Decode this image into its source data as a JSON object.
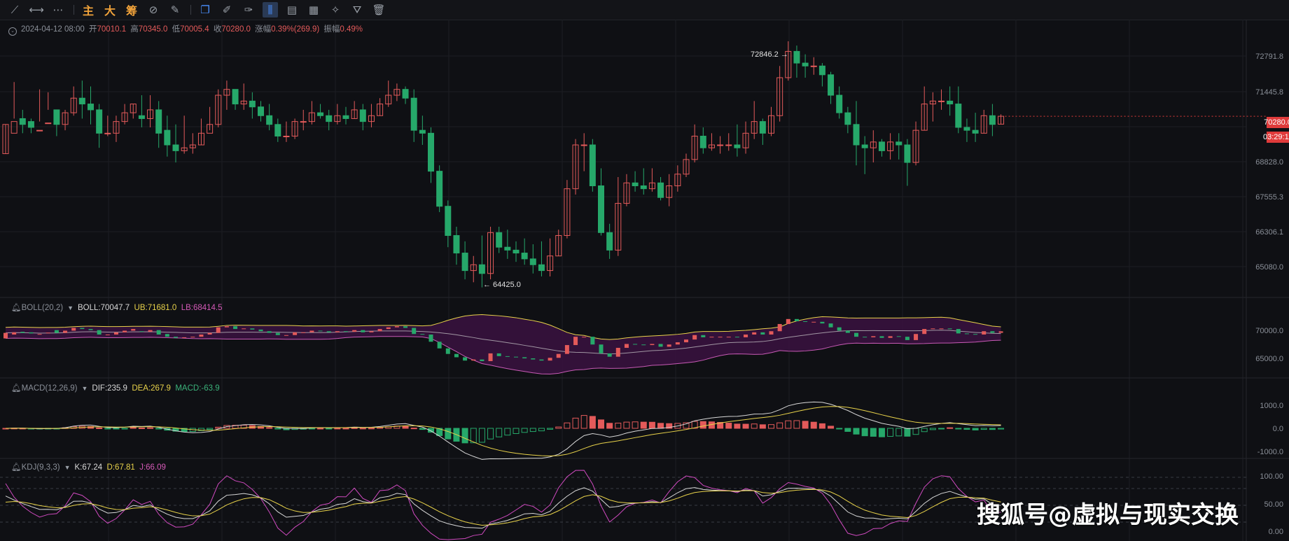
{
  "toolbar": {
    "items": [
      {
        "name": "trendline-tool-icon",
        "glyph": "⟋"
      },
      {
        "name": "horizontal-ray-tool-icon",
        "glyph": "⟷"
      },
      {
        "name": "more-tools-icon",
        "glyph": "⋯"
      }
    ],
    "chars": [
      "主",
      "大",
      "筹"
    ],
    "tools2": [
      {
        "name": "indicator-icon",
        "glyph": "⊘"
      },
      {
        "name": "draw-pen-icon",
        "glyph": "✎"
      }
    ],
    "tools3": [
      {
        "name": "copy-icon",
        "glyph": "❐"
      },
      {
        "name": "ruler-icon",
        "glyph": "✐"
      },
      {
        "name": "brush-icon",
        "glyph": "✑"
      },
      {
        "name": "candle-style-icon",
        "glyph": "⫼"
      },
      {
        "name": "clipboard-icon",
        "glyph": "▤"
      },
      {
        "name": "note-icon",
        "glyph": "▦"
      },
      {
        "name": "magic-icon",
        "glyph": "✧"
      },
      {
        "name": "filter-icon",
        "glyph": "⛛"
      },
      {
        "name": "trash-icon",
        "glyph": "🗑"
      }
    ]
  },
  "ohlc": {
    "date": "2024-04-12 08:00",
    "open_label": "开",
    "open": "70010.1",
    "high_label": "高",
    "high": "70345.0",
    "low_label": "低",
    "low": "70005.4",
    "close_label": "收",
    "close": "70280.0",
    "change_label": "涨幅",
    "change": "0.39%(269.9)",
    "amp_label": "振幅",
    "amp": "0.49%"
  },
  "boll": {
    "name": "BOLL(20,2)",
    "mid": "BOLL:70047.7",
    "ub": "UB:71681.0",
    "lb": "LB:68414.5"
  },
  "macd": {
    "name": "MACD(12,26,9)",
    "dif": "DIF:235.9",
    "dea": "DEA:267.9",
    "macd": "MACD:-63.9"
  },
  "kdj": {
    "name": "KDJ(9,3,3)",
    "k": "K:67.24",
    "d": "D:67.81",
    "j": "J:66.09"
  },
  "price_axis": [
    "72791.8",
    "71445.8",
    "68828.0",
    "67555.3",
    "66306.1",
    "65080.0"
  ],
  "boll_axis": [
    "70000.0",
    "65000.0"
  ],
  "macd_axis": [
    "1000.0",
    "0.0",
    "-1000.0"
  ],
  "kdj_axis": [
    "100.00",
    "50.00",
    "0.00"
  ],
  "current_price": "70280.0",
  "countdown": "03:29:11",
  "high_annotation": "72846.2 →",
  "low_annotation": "← 64425.0",
  "watermark": "搜狐号@虚拟与现实交换",
  "colors": {
    "up": "#e35a5a",
    "down": "#26a86a",
    "bg": "#0f1014",
    "boll_fill": "#3a1240",
    "boll_band": "#c75ab5",
    "boll_mid": "#d0d0d0",
    "yellow": "#e8d24a",
    "magenta": "#d04ac0"
  },
  "chart_data": {
    "type": "candlestick",
    "y_range": [
      64200,
      73300
    ],
    "candles": [
      [
        69000,
        70000,
        70000,
        69000
      ],
      [
        69700,
        70100,
        71450,
        70200
      ],
      [
        70200,
        70000,
        70500,
        69700
      ],
      [
        70100,
        69900,
        70200,
        69700
      ],
      [
        69800,
        69800,
        71200,
        70100
      ],
      [
        70050,
        70050,
        71100,
        70500
      ],
      [
        70500,
        70000,
        70500,
        69600
      ],
      [
        70000,
        70400,
        70500,
        69800
      ],
      [
        70400,
        70900,
        71300,
        70300
      ],
      [
        70900,
        70700,
        71500,
        70200
      ],
      [
        70700,
        70500,
        71300,
        70000
      ],
      [
        70500,
        69700,
        70700,
        69200
      ],
      [
        69700,
        69700,
        70300,
        69600
      ],
      [
        69700,
        70100,
        70300,
        69400
      ],
      [
        70100,
        70400,
        70700,
        70000
      ],
      [
        70400,
        70700,
        70700,
        70200
      ],
      [
        70300,
        70200,
        71000,
        69900
      ],
      [
        70200,
        70500,
        71000,
        69900
      ],
      [
        70500,
        69700,
        70800,
        69200
      ],
      [
        69800,
        69300,
        70300,
        68900
      ],
      [
        69300,
        69100,
        70000,
        68700
      ],
      [
        69100,
        69200,
        70300,
        69000
      ],
      [
        69200,
        69300,
        69700,
        69000
      ],
      [
        69300,
        69700,
        70200,
        69300
      ],
      [
        69700,
        70000,
        70600,
        69800
      ],
      [
        70000,
        71000,
        71200,
        69900
      ],
      [
        71000,
        71200,
        71500,
        70500
      ],
      [
        71200,
        70700,
        71200,
        70500
      ],
      [
        70700,
        70800,
        71400,
        70500
      ],
      [
        70800,
        70600,
        71100,
        70200
      ],
      [
        70600,
        70300,
        70800,
        70100
      ],
      [
        70300,
        70000,
        70700,
        69800
      ],
      [
        70000,
        69600,
        70200,
        69400
      ],
      [
        69600,
        69600,
        70100,
        69400
      ],
      [
        69600,
        70100,
        70200,
        69500
      ],
      [
        70100,
        70100,
        70500,
        69800
      ],
      [
        70100,
        70400,
        70800,
        70000
      ],
      [
        70400,
        70300,
        70700,
        70200
      ],
      [
        70300,
        70100,
        70500,
        69800
      ],
      [
        70100,
        70300,
        70700,
        70000
      ],
      [
        70300,
        70200,
        70600,
        70000
      ],
      [
        70200,
        70500,
        70800,
        70200
      ],
      [
        70500,
        70100,
        70700,
        69800
      ],
      [
        70100,
        70300,
        70700,
        69900
      ],
      [
        70300,
        70700,
        70900,
        70300
      ],
      [
        70700,
        71000,
        71500,
        70600
      ],
      [
        71000,
        71200,
        71400,
        70800
      ],
      [
        71200,
        70900,
        71300,
        70700
      ],
      [
        70900,
        69800,
        71200,
        69400
      ],
      [
        69800,
        69700,
        70300,
        69300
      ],
      [
        69700,
        68400,
        69900,
        68000
      ],
      [
        68400,
        67200,
        68600,
        67000
      ],
      [
        67200,
        66200,
        67400,
        65800
      ],
      [
        66200,
        65600,
        66500,
        65200
      ],
      [
        65600,
        65000,
        66000,
        64700
      ],
      [
        65000,
        65200,
        65500,
        64600
      ],
      [
        65200,
        64900,
        66200,
        64425
      ],
      [
        64900,
        66300,
        66500,
        64700
      ],
      [
        66300,
        65800,
        66500,
        65600
      ],
      [
        65800,
        65700,
        66400,
        65400
      ],
      [
        65700,
        65600,
        66000,
        65300
      ],
      [
        65600,
        65400,
        66100,
        65200
      ],
      [
        65400,
        65200,
        65900,
        64900
      ],
      [
        65200,
        65000,
        66000,
        64800
      ],
      [
        65000,
        65500,
        66100,
        64800
      ],
      [
        65500,
        66200,
        66400,
        65500
      ],
      [
        66200,
        67800,
        68100,
        66100
      ],
      [
        67800,
        69300,
        69500,
        67600
      ],
      [
        69300,
        69300,
        69700,
        68400
      ],
      [
        69300,
        67900,
        69500,
        67700
      ],
      [
        67900,
        66300,
        68500,
        66200
      ],
      [
        66300,
        65700,
        66600,
        65400
      ],
      [
        65700,
        67300,
        68200,
        65500
      ],
      [
        67300,
        68000,
        68300,
        67200
      ],
      [
        68000,
        67900,
        68400,
        67700
      ],
      [
        67900,
        67800,
        68500,
        67600
      ],
      [
        67800,
        68000,
        68500,
        67700
      ],
      [
        68000,
        67500,
        68200,
        67400
      ],
      [
        67500,
        67900,
        68300,
        67200
      ],
      [
        67900,
        68300,
        68600,
        67700
      ],
      [
        68300,
        68800,
        69000,
        68200
      ],
      [
        68800,
        69600,
        70000,
        68700
      ],
      [
        69600,
        69200,
        69900,
        69000
      ],
      [
        69200,
        69300,
        69700,
        69100
      ],
      [
        69300,
        69300,
        69600,
        69000
      ],
      [
        69300,
        69300,
        69700,
        69100
      ],
      [
        69300,
        69200,
        70000,
        68900
      ],
      [
        69200,
        69700,
        70100,
        69000
      ],
      [
        69700,
        70100,
        70800,
        69500
      ],
      [
        70100,
        69700,
        70200,
        69300
      ],
      [
        69700,
        70300,
        70600,
        69600
      ],
      [
        70300,
        71600,
        72000,
        70100
      ],
      [
        71600,
        72500,
        72846.2,
        71500
      ],
      [
        72500,
        72100,
        72700,
        71600
      ],
      [
        72100,
        72000,
        72400,
        71600
      ],
      [
        72000,
        72000,
        72300,
        71700
      ],
      [
        72000,
        71700,
        72100,
        71300
      ],
      [
        71700,
        71000,
        71800,
        70700
      ],
      [
        71000,
        70400,
        71300,
        70200
      ],
      [
        70400,
        70000,
        70600,
        69700
      ],
      [
        70000,
        69300,
        70800,
        68600
      ],
      [
        69300,
        69200,
        69600,
        68300
      ],
      [
        69200,
        69400,
        69800,
        68700
      ],
      [
        69400,
        69100,
        69500,
        68900
      ],
      [
        69100,
        69400,
        69700,
        68800
      ],
      [
        69400,
        69300,
        69700,
        68800
      ],
      [
        69300,
        68700,
        69500,
        67900
      ],
      [
        68700,
        69800,
        70100,
        68600
      ],
      [
        69800,
        70700,
        71300,
        69800
      ],
      [
        70700,
        70800,
        71100,
        70100
      ],
      [
        70800,
        70800,
        71200,
        70500
      ],
      [
        70800,
        70700,
        71300,
        70300
      ],
      [
        70700,
        69900,
        71300,
        69700
      ],
      [
        69900,
        69800,
        70200,
        69400
      ],
      [
        69800,
        69700,
        70400,
        69400
      ],
      [
        69700,
        70300,
        70500,
        69700
      ],
      [
        70300,
        70000,
        70700,
        69600
      ],
      [
        70010.1,
        70280,
        70345,
        70005.4
      ]
    ]
  }
}
